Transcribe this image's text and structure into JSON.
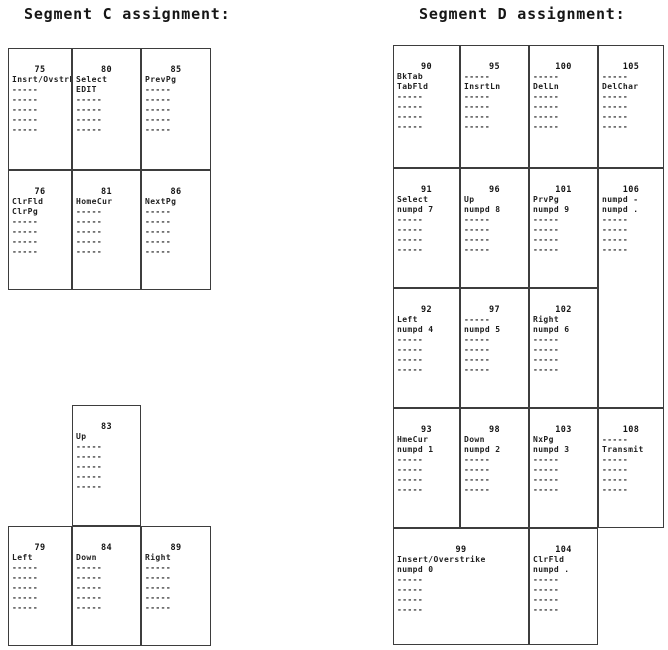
{
  "segments": [
    {
      "id": "C",
      "title": "Segment C assignment:",
      "keys": [
        {
          "num": "75",
          "col": 0,
          "row": 0,
          "lines": [
            "Insrt/Ovstrk",
            "-----",
            "-----",
            "-----",
            "-----",
            "-----"
          ]
        },
        {
          "num": "80",
          "col": 1,
          "row": 0,
          "lines": [
            "Select",
            "EDIT",
            "-----",
            "-----",
            "-----",
            "-----"
          ]
        },
        {
          "num": "85",
          "col": 2,
          "row": 0,
          "lines": [
            "PrevPg",
            "-----",
            "-----",
            "-----",
            "-----",
            "-----"
          ]
        },
        {
          "num": "76",
          "col": 0,
          "row": 1,
          "lines": [
            "ClrFld",
            "ClrPg",
            "-----",
            "-----",
            "-----",
            "-----"
          ]
        },
        {
          "num": "81",
          "col": 1,
          "row": 1,
          "lines": [
            "HomeCur",
            "-----",
            "-----",
            "-----",
            "-----",
            "-----"
          ]
        },
        {
          "num": "86",
          "col": 2,
          "row": 1,
          "lines": [
            "NextPg",
            "-----",
            "-----",
            "-----",
            "-----",
            "-----"
          ]
        },
        {
          "num": "83",
          "col": 1,
          "row": 2,
          "lines": [
            "Up",
            "-----",
            "-----",
            "-----",
            "-----",
            "-----"
          ]
        },
        {
          "num": "79",
          "col": 0,
          "row": 3,
          "lines": [
            "Left",
            "-----",
            "-----",
            "-----",
            "-----",
            "-----"
          ]
        },
        {
          "num": "84",
          "col": 1,
          "row": 3,
          "lines": [
            "Down",
            "-----",
            "-----",
            "-----",
            "-----",
            "-----"
          ]
        },
        {
          "num": "89",
          "col": 2,
          "row": 3,
          "lines": [
            "Right",
            "-----",
            "-----",
            "-----",
            "-----",
            "-----"
          ]
        }
      ]
    },
    {
      "id": "D",
      "title": "Segment D assignment:",
      "keys": [
        {
          "num": "90",
          "col": 0,
          "row": 0,
          "lines": [
            "BkTab",
            "TabFld",
            "-----",
            "-----",
            "-----",
            "-----"
          ]
        },
        {
          "num": "95",
          "col": 1,
          "row": 0,
          "lines": [
            "-----",
            "InsrtLn",
            "-----",
            "-----",
            "-----",
            "-----"
          ]
        },
        {
          "num": "100",
          "col": 2,
          "row": 0,
          "lines": [
            "-----",
            "DelLn",
            "-----",
            "-----",
            "-----",
            "-----"
          ]
        },
        {
          "num": "105",
          "col": 3,
          "row": 0,
          "lines": [
            "-----",
            "DelChar",
            "-----",
            "-----",
            "-----",
            "-----"
          ]
        },
        {
          "num": "91",
          "col": 0,
          "row": 1,
          "lines": [
            "Select",
            "numpd 7",
            "-----",
            "-----",
            "-----",
            "-----"
          ]
        },
        {
          "num": "96",
          "col": 1,
          "row": 1,
          "lines": [
            "Up",
            "numpd 8",
            "-----",
            "-----",
            "-----",
            "-----"
          ]
        },
        {
          "num": "101",
          "col": 2,
          "row": 1,
          "lines": [
            "PrvPg",
            "numpd 9",
            "-----",
            "-----",
            "-----",
            "-----"
          ]
        },
        {
          "num": "106",
          "col": 3,
          "row": 1,
          "rs": 2,
          "lines": [
            "numpd -",
            "numpd .",
            "-----",
            "-----",
            "-----",
            "-----"
          ]
        },
        {
          "num": "92",
          "col": 0,
          "row": 2,
          "lines": [
            "Left",
            "numpd 4",
            "-----",
            "-----",
            "-----",
            "-----"
          ]
        },
        {
          "num": "97",
          "col": 1,
          "row": 2,
          "lines": [
            "-----",
            "numpd 5",
            "-----",
            "-----",
            "-----",
            "-----"
          ]
        },
        {
          "num": "102",
          "col": 2,
          "row": 2,
          "lines": [
            "Right",
            "numpd 6",
            "-----",
            "-----",
            "-----",
            "-----"
          ]
        },
        {
          "num": "93",
          "col": 0,
          "row": 3,
          "lines": [
            "HmeCur",
            "numpd 1",
            "-----",
            "-----",
            "-----",
            "-----"
          ]
        },
        {
          "num": "98",
          "col": 1,
          "row": 3,
          "lines": [
            "Down",
            "numpd 2",
            "-----",
            "-----",
            "-----",
            "-----"
          ]
        },
        {
          "num": "103",
          "col": 2,
          "row": 3,
          "lines": [
            "NxPg",
            "numpd 3",
            "-----",
            "-----",
            "-----",
            "-----"
          ]
        },
        {
          "num": "108",
          "col": 3,
          "row": 3,
          "lines": [
            "-----",
            "Transmit",
            "-----",
            "-----",
            "-----",
            "-----"
          ]
        },
        {
          "num": "99",
          "col": 0,
          "row": 4,
          "cs": 2,
          "lines": [
            "Insert/Overstrike",
            "numpd 0",
            "-----",
            "-----",
            "-----",
            "-----"
          ]
        },
        {
          "num": "104",
          "col": 2,
          "row": 4,
          "lines": [
            "ClrFld",
            "numpd .",
            "-----",
            "-----",
            "-----",
            "-----"
          ]
        }
      ]
    }
  ]
}
